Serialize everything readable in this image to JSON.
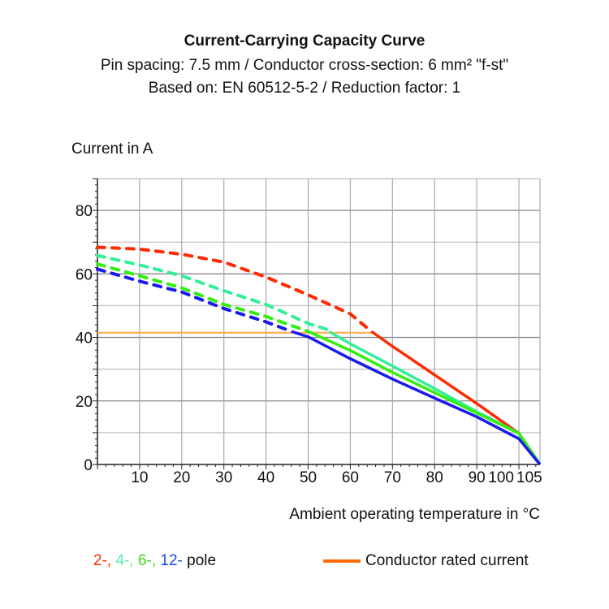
{
  "chart_data": {
    "type": "line",
    "title": "Current-Carrying Capacity Curve",
    "subtitle": [
      "Pin spacing: 7.5 mm / Conductor cross-section: 6 mm² \"f-st\"",
      "Based on: EN 60512-5-2 / Reduction factor: 1"
    ],
    "ylabel": "Current in A",
    "xlabel": "Ambient operating temperature in °C",
    "xlim": [
      0,
      105
    ],
    "ylim": [
      0,
      90
    ],
    "x_ticks": [
      "10",
      "20",
      "30",
      "40",
      "50",
      "60",
      "70",
      "80",
      "90",
      "100",
      "105"
    ],
    "x_tick_values": [
      10,
      20,
      30,
      40,
      50,
      60,
      70,
      80,
      90,
      100,
      105
    ],
    "y_ticks": [
      "0",
      "20",
      "40",
      "60",
      "80"
    ],
    "y_tick_values": [
      0,
      20,
      40,
      60,
      80
    ],
    "grid": true,
    "series": [
      {
        "name": "2-",
        "color": "#ff2a00",
        "dashed": {
          "x": [
            0,
            10,
            20,
            30,
            40,
            50,
            60,
            65
          ],
          "y": [
            68.4,
            67.8,
            66.2,
            63.7,
            59,
            53.4,
            47.4,
            41.9
          ]
        },
        "solid": {
          "x": [
            65,
            70,
            80,
            90,
            100,
            105
          ],
          "y": [
            41.9,
            37.2,
            28.2,
            19.2,
            9.8,
            0
          ]
        }
      },
      {
        "name": "4-",
        "color": "#33ee99",
        "dashed": {
          "x": [
            0,
            10,
            20,
            30,
            40,
            50,
            55
          ],
          "y": [
            65.8,
            62.8,
            59.4,
            54.7,
            50.4,
            44.4,
            42.3
          ]
        },
        "solid": {
          "x": [
            55,
            60,
            70,
            80,
            90,
            100,
            105
          ],
          "y": [
            41.8,
            38,
            31,
            23.9,
            16.6,
            9.8,
            0
          ]
        }
      },
      {
        "name": "6-",
        "color": "#33ee11",
        "dashed": {
          "x": [
            0,
            10,
            20,
            30,
            40,
            50
          ],
          "y": [
            63.1,
            59.4,
            55.6,
            50.4,
            46.6,
            41.9
          ]
        },
        "solid": {
          "x": [
            50,
            60,
            70,
            80,
            90,
            100,
            105
          ],
          "y": [
            41.9,
            35.9,
            29,
            22.6,
            16.2,
            9.8,
            0
          ]
        }
      },
      {
        "name": "12-",
        "color": "#1a1aee",
        "dashed": {
          "x": [
            0,
            10,
            20,
            30,
            40,
            46
          ],
          "y": [
            61.5,
            57.7,
            54.3,
            49.1,
            44.9,
            41.9
          ]
        },
        "solid": {
          "x": [
            46,
            50,
            60,
            70,
            80,
            90,
            100,
            105
          ],
          "y": [
            41.9,
            40.2,
            33.3,
            26.9,
            20.9,
            15,
            8.1,
            0
          ]
        }
      }
    ],
    "rated_current": {
      "name": "Conductor rated current",
      "color": "#ffaa44",
      "legend_color": "#ff6a00",
      "x": [
        0,
        65
      ],
      "y": [
        41.5,
        41.5
      ]
    },
    "legend": {
      "poles": [
        {
          "text": "2-,",
          "color": "#ff2a00"
        },
        {
          "text": " 4-,",
          "color": "#55eeaa"
        },
        {
          "text": " 6-,",
          "color": "#33dd11"
        },
        {
          "text": " 12-",
          "color": "#1a4aee"
        },
        {
          "text": " pole",
          "color": "#111111"
        }
      ],
      "rated_label": "Conductor rated current",
      "placement": "bottom"
    }
  }
}
